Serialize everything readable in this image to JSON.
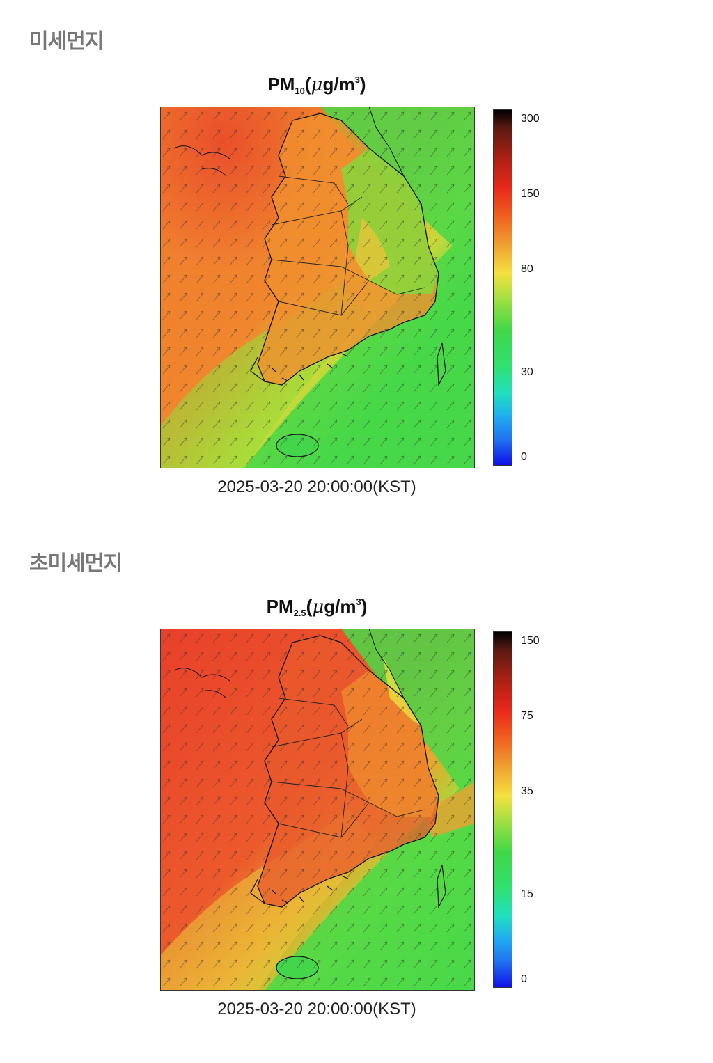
{
  "sections": [
    {
      "heading": "미세먼지",
      "title_main": "PM",
      "title_sub": "10",
      "title_unit_open": "(",
      "title_unit_mu": "μ",
      "title_unit_g": "g/m",
      "title_unit_sup": "3",
      "title_unit_close": ")",
      "timestamp": "2025-03-20 20:00:00(KST)",
      "colorbar_ticks": [
        "300",
        "150",
        "80",
        "30",
        "0"
      ]
    },
    {
      "heading": "초미세먼지",
      "title_main": "PM",
      "title_sub": "2.5",
      "title_unit_open": "(",
      "title_unit_mu": "μ",
      "title_unit_g": "g/m",
      "title_unit_sup": "3",
      "title_unit_close": ")",
      "timestamp": "2025-03-20 20:00:00(KST)",
      "colorbar_ticks": [
        "150",
        "75",
        "35",
        "15",
        "0"
      ]
    }
  ],
  "colors": {
    "high": "#e8462a",
    "mid_high": "#f0782c",
    "mid": "#f5b840",
    "low_mid": "#9ee03a",
    "low": "#3cd84a",
    "coastline": "#111111"
  }
}
